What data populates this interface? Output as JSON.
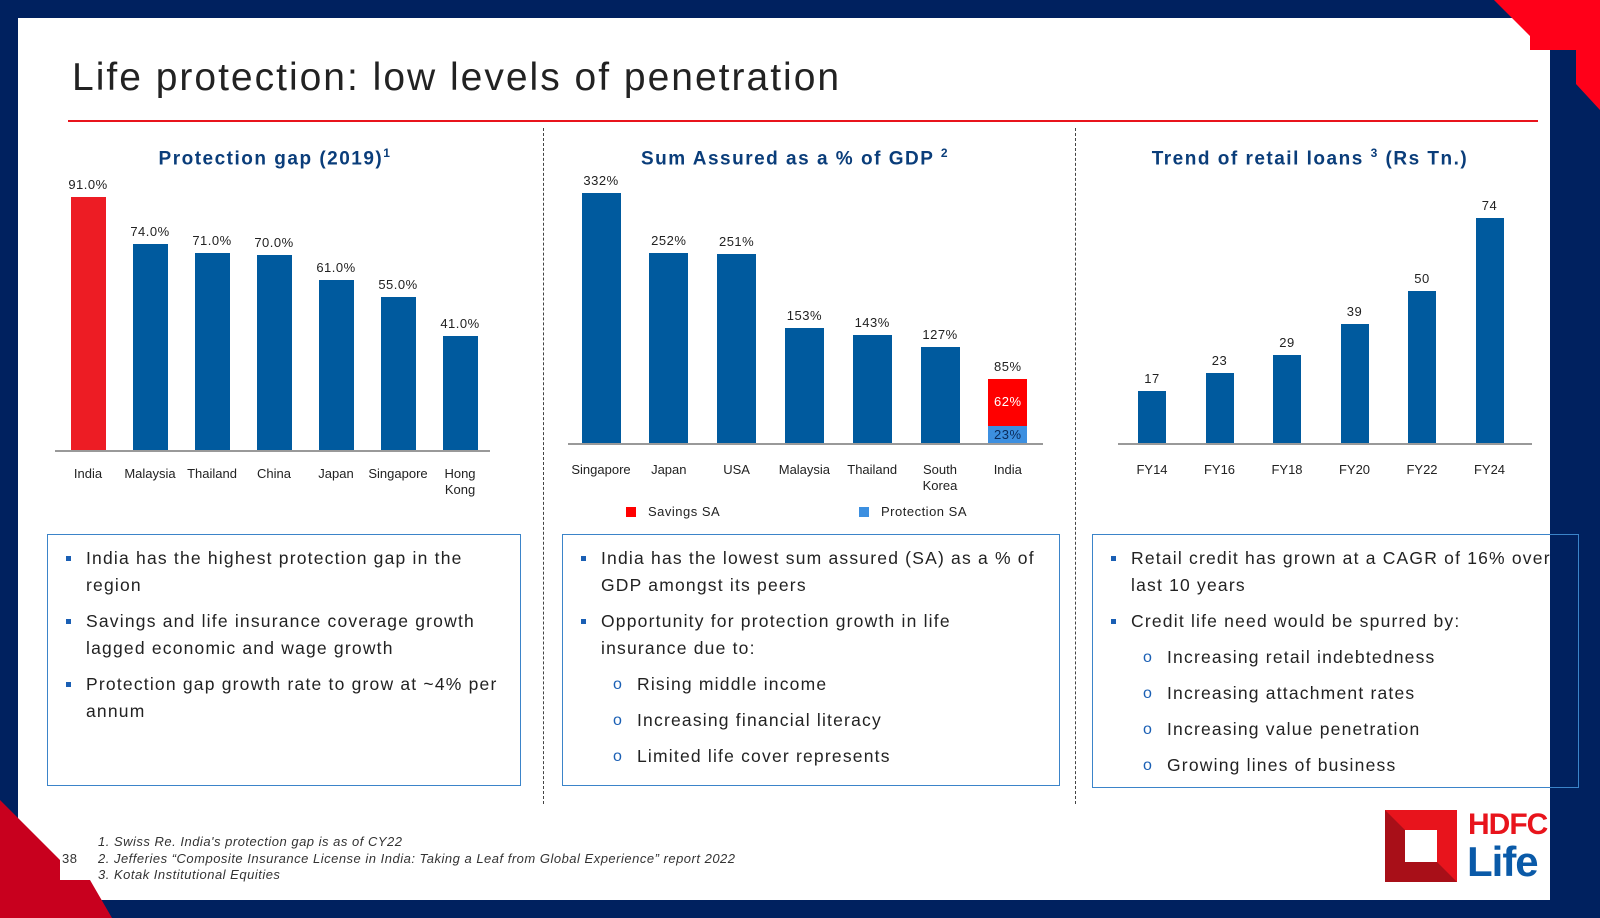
{
  "title": "Life protection: low levels of penetration",
  "page_number": "38",
  "logo": {
    "line1": "HDFC",
    "line2": "Life"
  },
  "colors": {
    "navy": "#00215f",
    "red": "#e8141c",
    "bar_blue": "#005a9e",
    "light_blue": "#3c8fe0"
  },
  "chart_data": [
    {
      "type": "bar",
      "title": "Protection gap (2019)",
      "title_sup": "1",
      "categories": [
        "India",
        "Malaysia",
        "Thailand",
        "China",
        "Japan",
        "Singapore",
        "Hong Kong"
      ],
      "values": [
        91.0,
        74.0,
        71.0,
        70.0,
        61.0,
        55.0,
        41.0
      ],
      "labels": [
        "91.0%",
        "74.0%",
        "71.0%",
        "70.0%",
        "61.0%",
        "55.0%",
        "41.0%"
      ],
      "highlight": "India",
      "unit": "%"
    },
    {
      "type": "bar",
      "title": "Sum Assured as a % of GDP",
      "title_sup": "2",
      "categories": [
        "Singapore",
        "Japan",
        "USA",
        "Malaysia",
        "Thailand",
        "South Korea",
        "India"
      ],
      "values": [
        332,
        252,
        251,
        153,
        143,
        127,
        85
      ],
      "labels": [
        "332%",
        "252%",
        "251%",
        "153%",
        "143%",
        "127%",
        "85%"
      ],
      "india_stack": {
        "savings": 62,
        "protection": 23,
        "savings_label": "62%",
        "protection_label": "23%"
      },
      "legend": [
        "Savings SA",
        "Protection SA"
      ],
      "unit": "%"
    },
    {
      "type": "bar",
      "title": "Trend of retail loans",
      "title_sup": "3",
      "title_suffix": "(Rs Tn.)",
      "categories": [
        "FY14",
        "FY16",
        "FY18",
        "FY20",
        "FY22",
        "FY24"
      ],
      "values": [
        17,
        23,
        29,
        39,
        50,
        74
      ],
      "labels": [
        "17",
        "23",
        "29",
        "39",
        "50",
        "74"
      ]
    }
  ],
  "boxes": [
    {
      "bullets": [
        "India has the highest protection gap in the region",
        "Savings and life insurance coverage growth lagged economic and wage growth",
        "Protection gap growth rate to grow at ~4% per annum"
      ],
      "subs": []
    },
    {
      "bullets": [
        "India has the lowest sum assured (SA) as a % of GDP amongst its peers",
        "Opportunity for protection growth in life insurance due to:"
      ],
      "subs": [
        "Rising middle income",
        "Increasing financial literacy",
        "Limited life cover represents"
      ]
    },
    {
      "bullets": [
        "Retail credit has grown at a CAGR of 16% over last 10 years",
        "Credit life need would be spurred by:"
      ],
      "subs": [
        "Increasing retail indebtedness",
        "Increasing attachment rates",
        "Increasing value penetration",
        "Growing lines of business"
      ]
    }
  ],
  "footnotes": [
    "1. Swiss Re. India's protection gap is as of CY22",
    "2. Jefferies “Composite Insurance License in India: Taking a Leaf from Global Experience” report 2022",
    "3. Kotak Institutional Equities"
  ],
  "sub_marker": "o"
}
